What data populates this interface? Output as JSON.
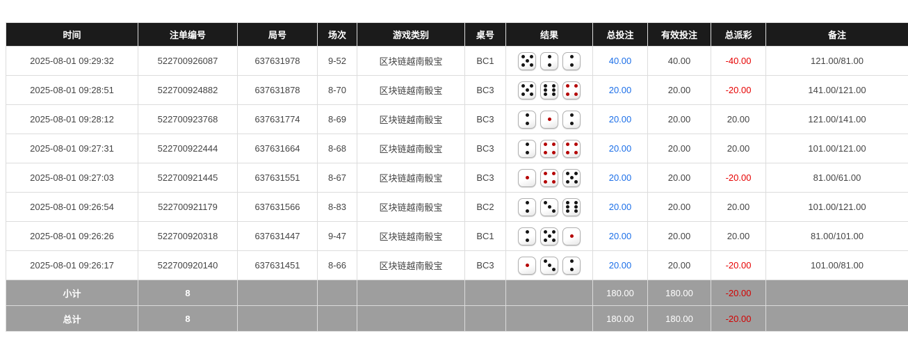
{
  "table": {
    "columns": [
      "时间",
      "注单编号",
      "局号",
      "场次",
      "游戏类别",
      "桌号",
      "结果",
      "总投注",
      "有效投注",
      "总派彩",
      "备注"
    ],
    "rows": [
      {
        "time": "2025-08-01 09:29:32",
        "bet_id": "522700926087",
        "round_no": "637631978",
        "session": "9-52",
        "game_type": "区块链越南骰宝",
        "table_no": "BC1",
        "dice": [
          5,
          2,
          2
        ],
        "total_bet": "40.00",
        "valid_bet": "40.00",
        "payout": "-40.00",
        "remark": "121.00/81.00"
      },
      {
        "time": "2025-08-01 09:28:51",
        "bet_id": "522700924882",
        "round_no": "637631878",
        "session": "8-70",
        "game_type": "区块链越南骰宝",
        "table_no": "BC3",
        "dice": [
          5,
          6,
          4
        ],
        "total_bet": "20.00",
        "valid_bet": "20.00",
        "payout": "-20.00",
        "remark": "141.00/121.00"
      },
      {
        "time": "2025-08-01 09:28:12",
        "bet_id": "522700923768",
        "round_no": "637631774",
        "session": "8-69",
        "game_type": "区块链越南骰宝",
        "table_no": "BC3",
        "dice": [
          2,
          1,
          2
        ],
        "total_bet": "20.00",
        "valid_bet": "20.00",
        "payout": "20.00",
        "remark": "121.00/141.00"
      },
      {
        "time": "2025-08-01 09:27:31",
        "bet_id": "522700922444",
        "round_no": "637631664",
        "session": "8-68",
        "game_type": "区块链越南骰宝",
        "table_no": "BC3",
        "dice": [
          2,
          4,
          4
        ],
        "total_bet": "20.00",
        "valid_bet": "20.00",
        "payout": "20.00",
        "remark": "101.00/121.00"
      },
      {
        "time": "2025-08-01 09:27:03",
        "bet_id": "522700921445",
        "round_no": "637631551",
        "session": "8-67",
        "game_type": "区块链越南骰宝",
        "table_no": "BC3",
        "dice": [
          1,
          4,
          5
        ],
        "total_bet": "20.00",
        "valid_bet": "20.00",
        "payout": "-20.00",
        "remark": "81.00/61.00"
      },
      {
        "time": "2025-08-01 09:26:54",
        "bet_id": "522700921179",
        "round_no": "637631566",
        "session": "8-83",
        "game_type": "区块链越南骰宝",
        "table_no": "BC2",
        "dice": [
          2,
          3,
          6
        ],
        "total_bet": "20.00",
        "valid_bet": "20.00",
        "payout": "20.00",
        "remark": "101.00/121.00"
      },
      {
        "time": "2025-08-01 09:26:26",
        "bet_id": "522700920318",
        "round_no": "637631447",
        "session": "9-47",
        "game_type": "区块链越南骰宝",
        "table_no": "BC1",
        "dice": [
          2,
          5,
          1
        ],
        "total_bet": "20.00",
        "valid_bet": "20.00",
        "payout": "20.00",
        "remark": "81.00/101.00"
      },
      {
        "time": "2025-08-01 09:26:17",
        "bet_id": "522700920140",
        "round_no": "637631451",
        "session": "8-66",
        "game_type": "区块链越南骰宝",
        "table_no": "BC3",
        "dice": [
          1,
          3,
          2
        ],
        "total_bet": "20.00",
        "valid_bet": "20.00",
        "payout": "-20.00",
        "remark": "101.00/81.00"
      }
    ],
    "footer": [
      {
        "label": "小计",
        "count": "8",
        "total_bet": "180.00",
        "valid_bet": "180.00",
        "payout": "-20.00",
        "remark": ""
      },
      {
        "label": "总计",
        "count": "8",
        "total_bet": "180.00",
        "valid_bet": "180.00",
        "payout": "-20.00",
        "remark": ""
      }
    ]
  },
  "colors": {
    "header_bg": "#1b1b1b",
    "bet_link_blue": "#1c6fe8",
    "negative_red": "#e60000",
    "footer_bg": "#9e9e9e",
    "pip_black": "#151515",
    "pip_red": "#b40000"
  }
}
